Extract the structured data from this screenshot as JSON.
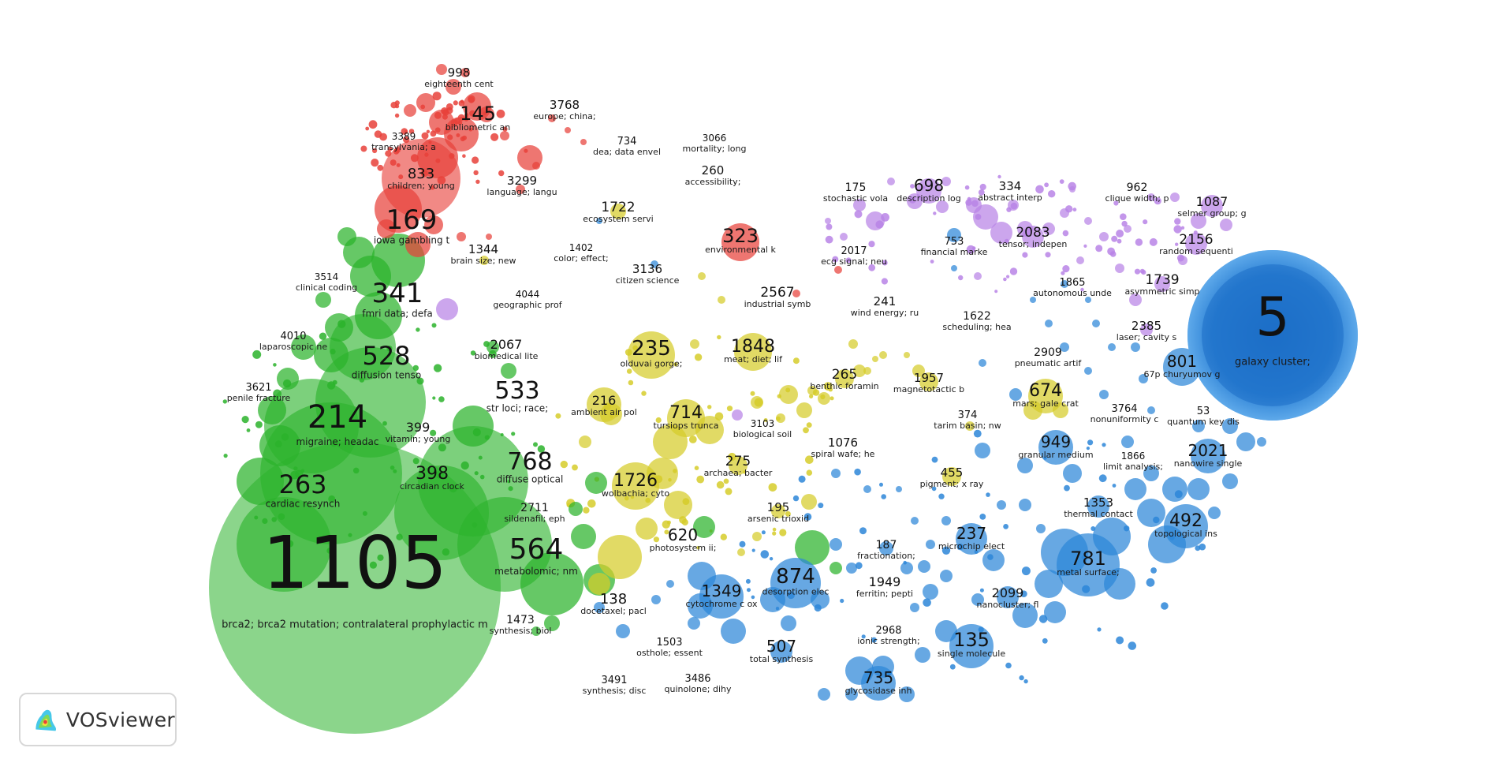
{
  "app": {
    "name": "VOSviewer"
  },
  "clusters": {
    "red": "#e8413a",
    "green": "#2bb32b",
    "yellow": "#d6cc2a",
    "blue": "#2d86d8",
    "purple": "#b884e6"
  },
  "nodes": [
    {
      "id": "1105",
      "label": "brca2; brca2 mutation; contralateral prophylactic m",
      "cluster": "green",
      "size": "huge"
    },
    {
      "id": "5",
      "label": "galaxy cluster;",
      "cluster": "blue",
      "size": "huge"
    },
    {
      "id": "214",
      "label": "migraine; headac",
      "cluster": "green",
      "size": "large"
    },
    {
      "id": "263",
      "label": "cardiac resynch",
      "cluster": "green",
      "size": "large"
    },
    {
      "id": "528",
      "label": "diffusion tenso",
      "cluster": "green",
      "size": "large"
    },
    {
      "id": "341",
      "label": "fmri data; defa",
      "cluster": "green",
      "size": "large"
    },
    {
      "id": "169",
      "label": "iowa gambling t",
      "cluster": "green",
      "size": "large"
    },
    {
      "id": "533",
      "label": "str loci; race;",
      "cluster": "green",
      "size": "large"
    },
    {
      "id": "768",
      "label": "diffuse optical",
      "cluster": "green",
      "size": "large"
    },
    {
      "id": "564",
      "label": "metabolomic; nm",
      "cluster": "green",
      "size": "large"
    },
    {
      "id": "399",
      "label": "vitamin; young",
      "cluster": "green",
      "size": "small"
    },
    {
      "id": "398",
      "label": "circadian clock",
      "cluster": "green",
      "size": "medium"
    },
    {
      "id": "2711",
      "label": "sildenafil; eph",
      "cluster": "green",
      "size": "small"
    },
    {
      "id": "1473",
      "label": "synthesis; biol",
      "cluster": "green",
      "size": "small"
    },
    {
      "id": "3514",
      "label": "clinical coding",
      "cluster": "green",
      "size": "small"
    },
    {
      "id": "4010",
      "label": "laparoscopic ne",
      "cluster": "green",
      "size": "small"
    },
    {
      "id": "3621",
      "label": "penile fracture",
      "cluster": "green",
      "size": "small"
    },
    {
      "id": "2067",
      "label": "biomedical lite",
      "cluster": "green",
      "size": "small"
    },
    {
      "id": "620",
      "label": "photosystem ii;",
      "cluster": "green",
      "size": "medium"
    },
    {
      "id": "138",
      "label": "docetaxel; pacl",
      "cluster": "green",
      "size": "medium"
    },
    {
      "id": "998",
      "label": "eighteenth cent",
      "cluster": "red",
      "size": "small"
    },
    {
      "id": "145",
      "label": "bibliometric an",
      "cluster": "red",
      "size": "medium"
    },
    {
      "id": "3768",
      "label": "europe; china;",
      "cluster": "red",
      "size": "small"
    },
    {
      "id": "3389",
      "label": "transylvania; a",
      "cluster": "red",
      "size": "small"
    },
    {
      "id": "734",
      "label": "dea; data envel",
      "cluster": "red",
      "size": "small"
    },
    {
      "id": "3066",
      "label": "mortality; long",
      "cluster": "red",
      "size": "small"
    },
    {
      "id": "833",
      "label": "children; young",
      "cluster": "red",
      "size": "medium"
    },
    {
      "id": "3299",
      "label": "language; langu",
      "cluster": "red",
      "size": "small"
    },
    {
      "id": "260",
      "label": "accessibility;",
      "cluster": "red",
      "size": "small"
    },
    {
      "id": "323",
      "label": "environmental k",
      "cluster": "red",
      "size": "medium"
    },
    {
      "id": "2017",
      "label": "ecg signal; neu",
      "cluster": "red",
      "size": "small"
    },
    {
      "id": "2567",
      "label": "industrial symb",
      "cluster": "red",
      "size": "small"
    },
    {
      "id": "1344",
      "label": "brain size; new",
      "cluster": "yellow",
      "size": "small"
    },
    {
      "id": "1402",
      "label": "color; effect;",
      "cluster": "yellow",
      "size": "small"
    },
    {
      "id": "1722",
      "label": "ecosystem servi",
      "cluster": "yellow",
      "size": "small"
    },
    {
      "id": "3136",
      "label": "citizen science",
      "cluster": "yellow",
      "size": "small"
    },
    {
      "id": "4044",
      "label": "geographic prof",
      "cluster": "yellow",
      "size": "small"
    },
    {
      "id": "235",
      "label": "olduvai gorge;",
      "cluster": "yellow",
      "size": "medium"
    },
    {
      "id": "1848",
      "label": "meat; diet; lif",
      "cluster": "yellow",
      "size": "medium"
    },
    {
      "id": "216",
      "label": "ambient air pol",
      "cluster": "yellow",
      "size": "small"
    },
    {
      "id": "714",
      "label": "tursiops trunca",
      "cluster": "yellow",
      "size": "medium"
    },
    {
      "id": "3103",
      "label": "biological soil",
      "cluster": "yellow",
      "size": "small"
    },
    {
      "id": "265",
      "label": "benthic foramin",
      "cluster": "yellow",
      "size": "small"
    },
    {
      "id": "1726",
      "label": "wolbachia; cyto",
      "cluster": "yellow",
      "size": "medium"
    },
    {
      "id": "275",
      "label": "archaea; bacter",
      "cluster": "yellow",
      "size": "small"
    },
    {
      "id": "1076",
      "label": "spiral wafe; he",
      "cluster": "yellow",
      "size": "small"
    },
    {
      "id": "195",
      "label": "arsenic trioxid",
      "cluster": "yellow",
      "size": "small"
    },
    {
      "id": "1957",
      "label": "magnetotactic b",
      "cluster": "yellow",
      "size": "small"
    },
    {
      "id": "455",
      "label": "pigment; x ray",
      "cluster": "yellow",
      "size": "small"
    },
    {
      "id": "674",
      "label": "mars; gale crat",
      "cluster": "yellow",
      "size": "medium"
    },
    {
      "id": "374",
      "label": "tarim basin; nw",
      "cluster": "yellow",
      "size": "small"
    },
    {
      "id": "175",
      "label": "stochastic vola",
      "cluster": "purple",
      "size": "small"
    },
    {
      "id": "698",
      "label": "description log",
      "cluster": "purple",
      "size": "medium"
    },
    {
      "id": "334",
      "label": "abstract interp",
      "cluster": "purple",
      "size": "small"
    },
    {
      "id": "962",
      "label": "clique width; p",
      "cluster": "purple",
      "size": "small"
    },
    {
      "id": "1087",
      "label": "selmer group; g",
      "cluster": "purple",
      "size": "small"
    },
    {
      "id": "2083",
      "label": "tensor; indepen",
      "cluster": "purple",
      "size": "small"
    },
    {
      "id": "2156",
      "label": "random sequenti",
      "cluster": "purple",
      "size": "small"
    },
    {
      "id": "1739",
      "label": "asymmetric simp",
      "cluster": "purple",
      "size": "small"
    },
    {
      "id": "2385",
      "label": "laser; cavity s",
      "cluster": "purple",
      "size": "small"
    },
    {
      "id": "753",
      "label": "financial marke",
      "cluster": "blue",
      "size": "small"
    },
    {
      "id": "1865",
      "label": "autonomous unde",
      "cluster": "blue",
      "size": "small"
    },
    {
      "id": "241",
      "label": "wind energy; ru",
      "cluster": "blue",
      "size": "small"
    },
    {
      "id": "1622",
      "label": "scheduling; hea",
      "cluster": "blue",
      "size": "small"
    },
    {
      "id": "2909",
      "label": "pneumatic artif",
      "cluster": "blue",
      "size": "small"
    },
    {
      "id": "801",
      "label": "67p churyumov g",
      "cluster": "blue",
      "size": "medium"
    },
    {
      "id": "3764",
      "label": "nonuniformity c",
      "cluster": "blue",
      "size": "small"
    },
    {
      "id": "53",
      "label": "quantum key dis",
      "cluster": "blue",
      "size": "small"
    },
    {
      "id": "949",
      "label": "granular medium",
      "cluster": "blue",
      "size": "medium"
    },
    {
      "id": "1866",
      "label": "limit analysis;",
      "cluster": "blue",
      "size": "small"
    },
    {
      "id": "2021",
      "label": "nanowire single",
      "cluster": "blue",
      "size": "medium"
    },
    {
      "id": "1353",
      "label": "thermal contact",
      "cluster": "blue",
      "size": "small"
    },
    {
      "id": "492",
      "label": "topological ins",
      "cluster": "blue",
      "size": "medium"
    },
    {
      "id": "237",
      "label": "microchip elect",
      "cluster": "blue",
      "size": "medium"
    },
    {
      "id": "781",
      "label": "metal surface;",
      "cluster": "blue",
      "size": "medium"
    },
    {
      "id": "187",
      "label": "fractionation;",
      "cluster": "blue",
      "size": "small"
    },
    {
      "id": "874",
      "label": "desorption elec",
      "cluster": "blue",
      "size": "medium"
    },
    {
      "id": "1949",
      "label": "ferritin; pepti",
      "cluster": "blue",
      "size": "small"
    },
    {
      "id": "2099",
      "label": "nanocluster; fl",
      "cluster": "blue",
      "size": "small"
    },
    {
      "id": "1349",
      "label": "cytochrome c ox",
      "cluster": "blue",
      "size": "medium"
    },
    {
      "id": "2968",
      "label": "ionic strength;",
      "cluster": "blue",
      "size": "small"
    },
    {
      "id": "135",
      "label": "single molecule",
      "cluster": "blue",
      "size": "medium"
    },
    {
      "id": "507",
      "label": "total synthesis",
      "cluster": "blue",
      "size": "medium"
    },
    {
      "id": "735",
      "label": "glycosidase inh",
      "cluster": "blue",
      "size": "medium"
    },
    {
      "id": "1503",
      "label": "osthole; essent",
      "cluster": "blue",
      "size": "small"
    },
    {
      "id": "3491",
      "label": "synthesis; disc",
      "cluster": "blue",
      "size": "small"
    },
    {
      "id": "3486",
      "label": "quinolone; dihy",
      "cluster": "blue",
      "size": "small"
    }
  ]
}
